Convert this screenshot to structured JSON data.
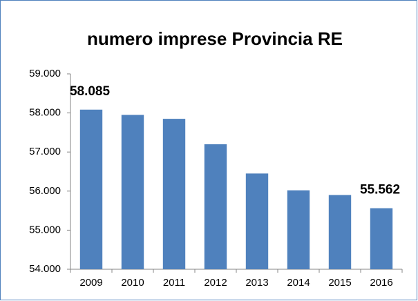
{
  "chart_data": {
    "type": "bar",
    "title": "numero imprese Provincia RE",
    "categories": [
      "2009",
      "2010",
      "2011",
      "2012",
      "2013",
      "2014",
      "2015",
      "2016"
    ],
    "values": [
      58085,
      57950,
      57850,
      57200,
      56450,
      56020,
      55900,
      55562
    ],
    "value_labels": [
      "58.085",
      null,
      null,
      null,
      null,
      null,
      null,
      "55.562"
    ],
    "color": "#4f81bd",
    "ylim": [
      54000,
      59000
    ],
    "yticks": [
      {
        "value": 54000,
        "label": "54.000"
      },
      {
        "value": 55000,
        "label": "55.000"
      },
      {
        "value": 56000,
        "label": "56.000"
      },
      {
        "value": 57000,
        "label": "57.000"
      },
      {
        "value": 58000,
        "label": "58.000"
      },
      {
        "value": 59000,
        "label": "59.000"
      }
    ],
    "grid": false
  }
}
